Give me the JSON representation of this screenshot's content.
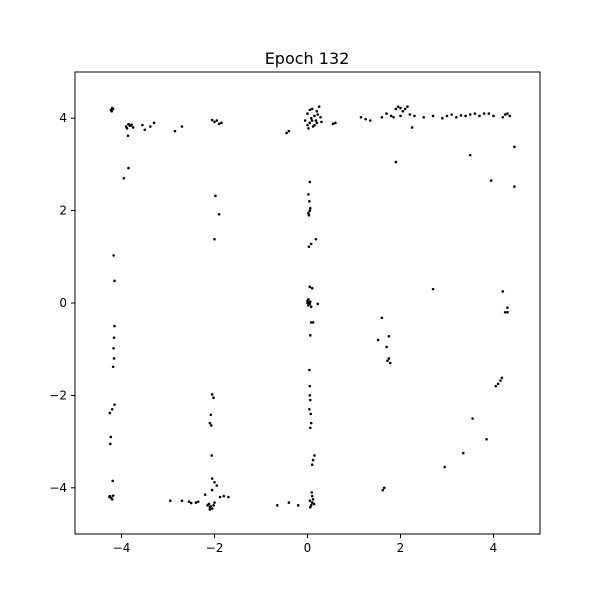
{
  "chart_data": {
    "type": "scatter",
    "title": "Epoch 132",
    "xlabel": "",
    "ylabel": "",
    "xlim": [
      -5,
      5
    ],
    "ylim": [
      -5,
      5
    ],
    "xticks": [
      {
        "value": -4,
        "label": "−4"
      },
      {
        "value": -2,
        "label": "−2"
      },
      {
        "value": 0,
        "label": "0"
      },
      {
        "value": 2,
        "label": "2"
      },
      {
        "value": 4,
        "label": "4"
      }
    ],
    "yticks": [
      {
        "value": -4,
        "label": "−4"
      },
      {
        "value": -2,
        "label": "−2"
      },
      {
        "value": 0,
        "label": "0"
      },
      {
        "value": 2,
        "label": "2"
      },
      {
        "value": 4,
        "label": "4"
      }
    ],
    "grid": false,
    "legend": "none",
    "marker_color": "#000000",
    "points": [
      [
        -4.23,
        4.18
      ],
      [
        -4.2,
        4.22
      ],
      [
        -4.21,
        4.15
      ],
      [
        -4.18,
        4.2
      ],
      [
        -4.17,
        1.03
      ],
      [
        -4.15,
        0.48
      ],
      [
        -4.15,
        -0.5
      ],
      [
        -4.16,
        -0.75
      ],
      [
        -4.17,
        -0.98
      ],
      [
        -4.16,
        -1.2
      ],
      [
        -4.18,
        -1.38
      ],
      [
        -4.15,
        -2.2
      ],
      [
        -4.2,
        -2.3
      ],
      [
        -4.25,
        -2.38
      ],
      [
        -4.23,
        -2.9
      ],
      [
        -4.24,
        -3.05
      ],
      [
        -4.19,
        -3.85
      ],
      [
        -4.25,
        -4.18
      ],
      [
        -4.22,
        -4.22
      ],
      [
        -4.2,
        -4.25
      ],
      [
        -4.18,
        -4.17
      ],
      [
        -4.26,
        -4.2
      ],
      [
        -3.95,
        2.7
      ],
      [
        -3.85,
        2.92
      ],
      [
        -3.9,
        3.82
      ],
      [
        -3.85,
        3.87
      ],
      [
        -3.8,
        3.84
      ],
      [
        -3.75,
        3.8
      ],
      [
        -3.88,
        3.78
      ],
      [
        -3.82,
        3.84
      ],
      [
        -3.78,
        3.86
      ],
      [
        -3.86,
        3.62
      ],
      [
        -3.55,
        3.85
      ],
      [
        -3.5,
        3.75
      ],
      [
        -3.38,
        3.82
      ],
      [
        -3.3,
        3.9
      ],
      [
        -2.85,
        3.72
      ],
      [
        -2.7,
        3.82
      ],
      [
        -2.05,
        3.96
      ],
      [
        -2.0,
        3.92
      ],
      [
        -1.95,
        3.95
      ],
      [
        -1.9,
        3.88
      ],
      [
        -1.85,
        3.9
      ],
      [
        -1.98,
        2.32
      ],
      [
        -1.9,
        1.92
      ],
      [
        -2.0,
        1.38
      ],
      [
        -2.05,
        -1.98
      ],
      [
        -2.02,
        -2.05
      ],
      [
        -2.08,
        -2.42
      ],
      [
        -2.1,
        -2.6
      ],
      [
        -2.07,
        -2.65
      ],
      [
        -2.06,
        -3.3
      ],
      [
        -2.05,
        -3.8
      ],
      [
        -2.0,
        -3.88
      ],
      [
        -1.95,
        -3.95
      ],
      [
        -2.05,
        -4.05
      ],
      [
        -2.2,
        -4.15
      ],
      [
        -2.15,
        -4.38
      ],
      [
        -2.1,
        -4.42
      ],
      [
        -2.05,
        -4.45
      ],
      [
        -2.12,
        -4.35
      ],
      [
        -2.08,
        -4.4
      ],
      [
        -2.02,
        -4.38
      ],
      [
        -2.1,
        -4.47
      ],
      [
        -2.0,
        -4.32
      ],
      [
        -1.88,
        -4.2
      ],
      [
        -1.8,
        -4.18
      ],
      [
        -1.7,
        -4.2
      ],
      [
        -2.95,
        -4.28
      ],
      [
        -2.7,
        -4.28
      ],
      [
        -2.55,
        -4.3
      ],
      [
        -2.5,
        -4.33
      ],
      [
        -2.4,
        -4.32
      ],
      [
        -2.35,
        -4.3
      ],
      [
        -0.65,
        -4.38
      ],
      [
        -0.4,
        -4.32
      ],
      [
        -0.2,
        -4.38
      ],
      [
        0.05,
        -4.28
      ],
      [
        0.1,
        -4.32
      ],
      [
        0.08,
        -4.38
      ],
      [
        0.12,
        -4.25
      ],
      [
        0.06,
        -4.42
      ],
      [
        0.1,
        -4.18
      ],
      [
        0.14,
        -4.35
      ],
      [
        0.09,
        -4.1
      ],
      [
        0.1,
        -3.5
      ],
      [
        0.12,
        -3.4
      ],
      [
        0.15,
        -3.3
      ],
      [
        0.05,
        -2.0
      ],
      [
        0.06,
        -2.1
      ],
      [
        0.04,
        -2.3
      ],
      [
        0.07,
        -2.4
      ],
      [
        0.08,
        -2.6
      ],
      [
        0.06,
        -2.7
      ],
      [
        0.05,
        -1.8
      ],
      [
        0.04,
        -1.45
      ],
      [
        0.06,
        -0.7
      ],
      [
        0.08,
        -0.42
      ],
      [
        0.12,
        -0.42
      ],
      [
        0.0,
        0.0
      ],
      [
        0.02,
        -0.05
      ],
      [
        0.04,
        0.02
      ],
      [
        0.0,
        0.05
      ],
      [
        0.05,
        -0.02
      ],
      [
        0.06,
        0.03
      ],
      [
        0.02,
        0.08
      ],
      [
        0.08,
        -0.08
      ],
      [
        0.22,
        -0.02
      ],
      [
        0.05,
        0.35
      ],
      [
        0.1,
        0.32
      ],
      [
        0.03,
        1.22
      ],
      [
        0.08,
        1.28
      ],
      [
        0.18,
        1.38
      ],
      [
        0.02,
        1.95
      ],
      [
        0.05,
        2.0
      ],
      [
        0.03,
        1.9
      ],
      [
        0.06,
        2.05
      ],
      [
        0.04,
        2.2
      ],
      [
        0.02,
        2.35
      ],
      [
        0.05,
        2.62
      ],
      [
        0.0,
        3.85
      ],
      [
        0.05,
        3.9
      ],
      [
        0.1,
        3.95
      ],
      [
        0.15,
        4.05
      ],
      [
        0.2,
        4.15
      ],
      [
        0.25,
        4.25
      ],
      [
        0.08,
        4.0
      ],
      [
        0.12,
        3.82
      ],
      [
        0.02,
        3.78
      ],
      [
        0.18,
        3.95
      ],
      [
        0.22,
        4.08
      ],
      [
        0.05,
        4.18
      ],
      [
        0.0,
        4.1
      ],
      [
        0.15,
        3.85
      ],
      [
        0.1,
        4.2
      ],
      [
        0.2,
        3.9
      ],
      [
        -0.05,
        3.95
      ],
      [
        0.3,
        3.92
      ],
      [
        0.28,
        4.02
      ],
      [
        0.55,
        3.88
      ],
      [
        0.6,
        3.9
      ],
      [
        -0.45,
        3.68
      ],
      [
        -0.4,
        3.72
      ],
      [
        1.15,
        4.02
      ],
      [
        1.25,
        3.98
      ],
      [
        1.35,
        3.95
      ],
      [
        1.6,
        4.02
      ],
      [
        1.7,
        4.1
      ],
      [
        1.8,
        4.05
      ],
      [
        1.9,
        4.2
      ],
      [
        1.95,
        4.25
      ],
      [
        2.0,
        4.22
      ],
      [
        2.05,
        4.15
      ],
      [
        2.1,
        4.2
      ],
      [
        2.15,
        4.25
      ],
      [
        1.85,
        4.02
      ],
      [
        2.0,
        4.05
      ],
      [
        2.2,
        4.08
      ],
      [
        2.3,
        4.05
      ],
      [
        2.25,
        3.8
      ],
      [
        2.5,
        4.02
      ],
      [
        2.7,
        4.05
      ],
      [
        2.9,
        4.0
      ],
      [
        3.0,
        4.05
      ],
      [
        3.1,
        4.08
      ],
      [
        3.2,
        4.02
      ],
      [
        3.3,
        4.06
      ],
      [
        3.4,
        4.05
      ],
      [
        3.5,
        4.08
      ],
      [
        3.6,
        4.1
      ],
      [
        3.7,
        4.05
      ],
      [
        3.8,
        4.1
      ],
      [
        3.9,
        4.1
      ],
      [
        4.0,
        4.05
      ],
      [
        4.2,
        4.02
      ],
      [
        4.25,
        4.08
      ],
      [
        4.3,
        4.1
      ],
      [
        4.35,
        4.05
      ],
      [
        1.9,
        3.05
      ],
      [
        3.5,
        3.2
      ],
      [
        3.95,
        2.65
      ],
      [
        4.45,
        3.38
      ],
      [
        4.45,
        2.52
      ],
      [
        2.7,
        0.3
      ],
      [
        4.2,
        0.25
      ],
      [
        4.3,
        -0.1
      ],
      [
        4.25,
        -0.2
      ],
      [
        4.3,
        -0.2
      ],
      [
        1.6,
        -0.32
      ],
      [
        1.52,
        -0.8
      ],
      [
        1.75,
        -0.72
      ],
      [
        1.7,
        -0.95
      ],
      [
        1.75,
        -1.2
      ],
      [
        1.72,
        -1.25
      ],
      [
        1.78,
        -1.3
      ],
      [
        4.05,
        -1.8
      ],
      [
        4.1,
        -1.75
      ],
      [
        4.15,
        -1.68
      ],
      [
        4.18,
        -1.62
      ],
      [
        3.55,
        -2.5
      ],
      [
        3.85,
        -2.95
      ],
      [
        3.35,
        -3.25
      ],
      [
        2.95,
        -3.55
      ],
      [
        1.62,
        -4.05
      ],
      [
        1.65,
        -4.0
      ]
    ]
  }
}
